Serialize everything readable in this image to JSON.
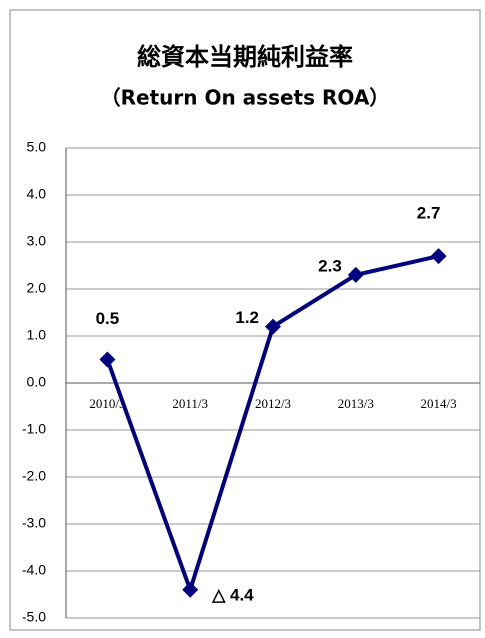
{
  "chart_data": {
    "type": "line",
    "title": "総資本当期純利益率",
    "subtitle": "（Return On assets  ROA）",
    "categories": [
      "2010/3",
      "2011/3",
      "2012/3",
      "2013/3",
      "2014/3"
    ],
    "series": [
      {
        "color": "#000080",
        "values": [
          0.5,
          -4.4,
          1.2,
          2.3,
          2.7
        ],
        "value_labels": [
          "0.5",
          "△ 4.4",
          "1.2",
          "2.3",
          "2.7"
        ]
      }
    ],
    "ylim": [
      -5,
      5
    ],
    "yticks": [
      {
        "value": 5,
        "label": "5.0"
      },
      {
        "value": 4,
        "label": "4.0"
      },
      {
        "value": 3,
        "label": "3.0"
      },
      {
        "value": 2,
        "label": "2.0"
      },
      {
        "value": 1,
        "label": "1.0"
      },
      {
        "value": 0,
        "label": "0.0"
      },
      {
        "value": -1,
        "label": "-1.0"
      },
      {
        "value": -2,
        "label": "-2.0"
      },
      {
        "value": -3,
        "label": "-3.0"
      },
      {
        "value": -4,
        "label": "-4.0"
      },
      {
        "value": -5,
        "label": "-5.0"
      }
    ],
    "grid": true
  }
}
